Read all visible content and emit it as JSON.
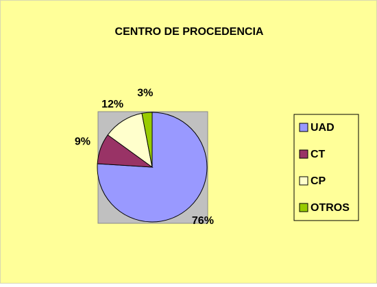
{
  "chart_data": {
    "type": "pie",
    "title": "CENTRO DE PROCEDENCIA",
    "categories": [
      "UAD",
      "CT",
      "CP",
      "OTROS"
    ],
    "values": [
      76,
      9,
      12,
      3
    ],
    "value_labels": [
      "76%",
      "9%",
      "12%",
      "3%"
    ],
    "colors": [
      "#9999ff",
      "#993366",
      "#ffffcc",
      "#99cc00"
    ],
    "legend": "right"
  }
}
